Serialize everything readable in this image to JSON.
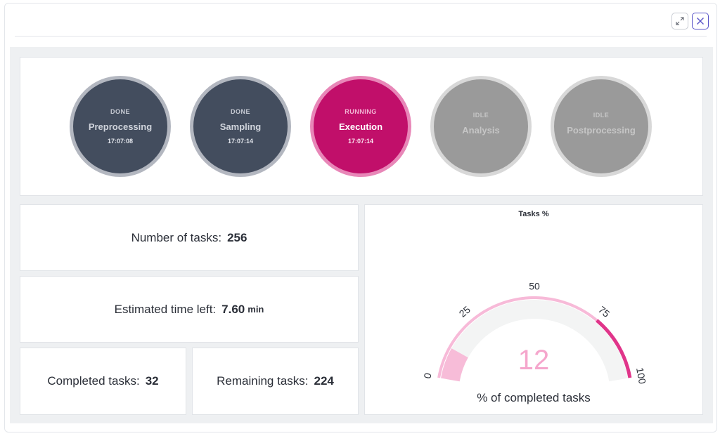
{
  "header": {
    "expand_icon": "expand-icon",
    "close_icon": "close-icon"
  },
  "pipeline": {
    "stages": [
      {
        "status": "DONE",
        "name": "Preprocessing",
        "time": "17:07:08",
        "state": "done"
      },
      {
        "status": "DONE",
        "name": "Sampling",
        "time": "17:07:14",
        "state": "done"
      },
      {
        "status": "RUNNING",
        "name": "Execution",
        "time": "17:07:14",
        "state": "running"
      },
      {
        "status": "IDLE",
        "name": "Analysis",
        "time": "",
        "state": "idle"
      },
      {
        "status": "IDLE",
        "name": "Postprocessing",
        "time": "",
        "state": "idle"
      }
    ]
  },
  "stats": {
    "number_of_tasks": {
      "label": "Number of tasks:",
      "value": "256"
    },
    "time_left": {
      "label": "Estimated time left:",
      "value": "7.60",
      "unit": "min"
    },
    "completed": {
      "label": "Completed tasks:",
      "value": "32"
    },
    "remaining": {
      "label": "Remaining tasks:",
      "value": "224"
    }
  },
  "gauge": {
    "title": "Tasks %",
    "value": "12",
    "caption": "% of completed tasks",
    "min": 0,
    "max": 100,
    "ticks": [
      "0",
      "25",
      "50",
      "75",
      "100"
    ],
    "colors": {
      "track": "#f3f4f4",
      "fill": "#f7bcd8",
      "value_text": "#f5a6cc",
      "band_light": "#f7bad8",
      "band_dark": "#e0358a"
    }
  }
}
